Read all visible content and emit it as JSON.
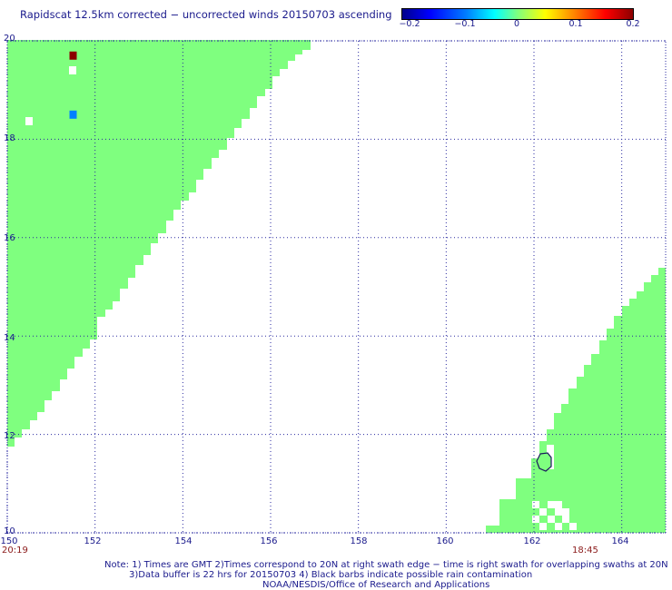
{
  "title": "Rapidscat 12.5km corrected − uncorrected winds 20150703 ascending",
  "colorbar": {
    "ticks": [
      "−0.2",
      "−0.1",
      "0",
      "0.1",
      "0.2"
    ],
    "values": [
      -0.2,
      -0.1,
      0,
      0.1,
      0.2
    ]
  },
  "map": {
    "lon_range": [
      150,
      165
    ],
    "lat_range": [
      10,
      20
    ],
    "x_ticks": [
      "150",
      "152",
      "154",
      "156",
      "158",
      "160",
      "162",
      "164"
    ],
    "y_ticks": [
      "10",
      "12",
      "14",
      "16",
      "18",
      "20"
    ],
    "swath_color": "#7fff7f",
    "time_left": "20:19",
    "time_right": "18:45",
    "special_cells": [
      {
        "lon": 151.5,
        "lat": 19.7,
        "value": 0.2,
        "color": "#8b0000"
      },
      {
        "lon": 151.5,
        "lat": 18.5,
        "value": -0.1,
        "color": "#0080ff"
      }
    ]
  },
  "notes": [
    "Note: 1) Times are GMT 2)Times correspond to 20N at right swath edge − time is right swath for overlapping swaths at 20N",
    "3)Data buffer is 22 hrs for 20150703 4) Black barbs indicate possible rain contamination",
    "NOAA/NESDIS/Office of Research and Applications"
  ]
}
